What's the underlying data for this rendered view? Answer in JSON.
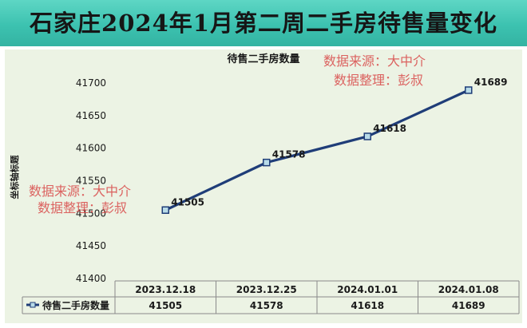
{
  "banner": {
    "title": "石家庄2024年1月第二周二手房待售量变化"
  },
  "watermark": {
    "line1": "数据来源：大中介",
    "line2": "数据整理：彭叔"
  },
  "colors": {
    "banner": "#3cc2b0",
    "plot_background": "#ecf3e4",
    "series_line": "#1f3d78",
    "marker_fill": "#b8dbe8",
    "watermark": "#d84848"
  },
  "chart_data": {
    "type": "line",
    "title": "待售二手房数量",
    "ylabel": "坐标轴标题",
    "xlabel": "",
    "categories": [
      "2023.12.18",
      "2023.12.25",
      "2024.01.01",
      "2024.01.08"
    ],
    "series": [
      {
        "name": "待售二手房数量",
        "values": [
          41505,
          41578,
          41618,
          41689
        ]
      }
    ],
    "ylim": [
      41400,
      41700
    ],
    "yticks": [
      41400,
      41450,
      41500,
      41550,
      41600,
      41650,
      41700
    ],
    "data_labels": true,
    "data_table": true,
    "legend": "data-table"
  }
}
